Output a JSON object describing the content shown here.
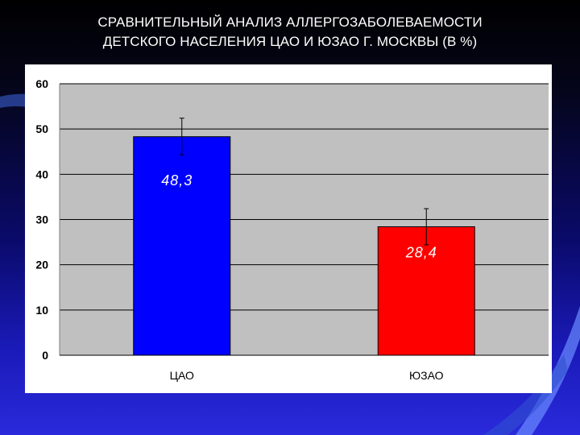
{
  "title": {
    "line1": "СРАВНИТЕЛЬНЫЙ АНАЛИЗ АЛЛЕРГОЗАБОЛЕВАЕМОСТИ",
    "line2": "ДЕТСКОГО НАСЕЛЕНИЯ ЦАО И ЮЗАО Г. МОСКВЫ (В %)"
  },
  "colors": {
    "plot_background": "#c0c0c0",
    "gridline": "#000000"
  },
  "chart_data": {
    "type": "bar",
    "title": "СРАВНИТЕЛЬНЫЙ АНАЛИЗ АЛЛЕРГОЗАБОЛЕВАЕМОСТИ ДЕТСКОГО НАСЕЛЕНИЯ ЦАО И ЮЗАО Г. МОСКВЫ (В %)",
    "categories": [
      "ЦАО",
      "ЮЗАО"
    ],
    "values": [
      48.3,
      28.4
    ],
    "data_labels": [
      "48,3",
      "28,4"
    ],
    "bar_colors": [
      "#0000ff",
      "#ff0000"
    ],
    "error_bars": [
      [
        44.3,
        52.4
      ],
      [
        24.4,
        32.4
      ]
    ],
    "ylim": [
      0,
      60
    ],
    "yticks": [
      0,
      10,
      20,
      30,
      40,
      50,
      60
    ],
    "xlabel": "",
    "ylabel": "",
    "grid": true,
    "legend": "none"
  }
}
